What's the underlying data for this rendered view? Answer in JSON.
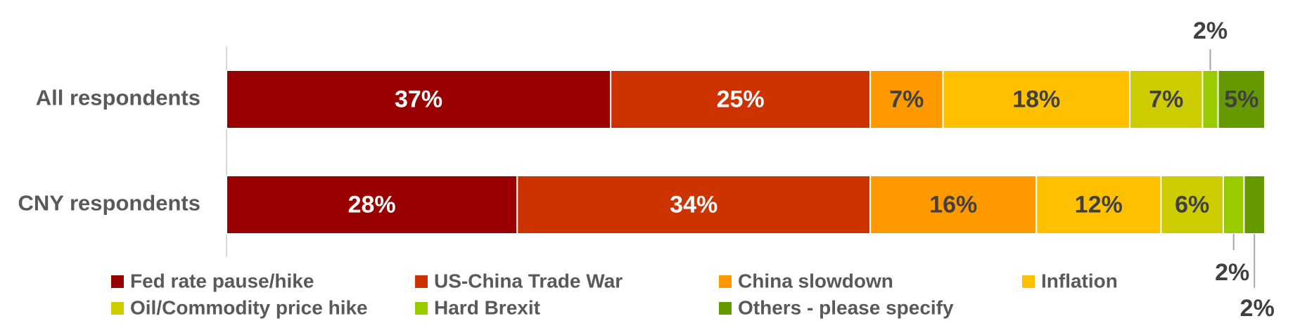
{
  "chart_data": {
    "type": "bar",
    "orientation": "horizontal",
    "stacked": "percent",
    "title": "",
    "xlabel": "",
    "ylabel": "",
    "xlim": [
      0,
      100
    ],
    "grid": false,
    "legend_position": "bottom",
    "categories": [
      "All respondents",
      "CNY respondents"
    ],
    "series": [
      {
        "name": "Fed rate pause/hike",
        "color": "#990000",
        "label_color": "#ffffff",
        "values": [
          37,
          28
        ],
        "labels": [
          "37%",
          "28%"
        ]
      },
      {
        "name": "US-China Trade War",
        "color": "#CC3300",
        "label_color": "#ffffff",
        "values": [
          25,
          34
        ],
        "labels": [
          "25%",
          "34%"
        ]
      },
      {
        "name": "China slowdown",
        "color": "#FF9900",
        "label_color": "#404040",
        "values": [
          7,
          16
        ],
        "labels": [
          "7%",
          "16%"
        ]
      },
      {
        "name": "Inflation",
        "color": "#FFC000",
        "label_color": "#404040",
        "values": [
          18,
          12
        ],
        "labels": [
          "18%",
          "12%"
        ]
      },
      {
        "name": "Oil/Commodity price hike",
        "color": "#CCCC00",
        "label_color": "#404040",
        "values": [
          7,
          6
        ],
        "labels": [
          "7%",
          "6%"
        ]
      },
      {
        "name": "Hard Brexit",
        "color": "#99CC00",
        "label_color": "#404040",
        "values": [
          1.5,
          2
        ],
        "labels": [
          "2%",
          "2%"
        ]
      },
      {
        "name": "Others - please specify",
        "color": "#669900",
        "label_color": "#404040",
        "values": [
          4.5,
          2
        ],
        "labels": [
          "5%",
          "2%"
        ]
      }
    ]
  }
}
